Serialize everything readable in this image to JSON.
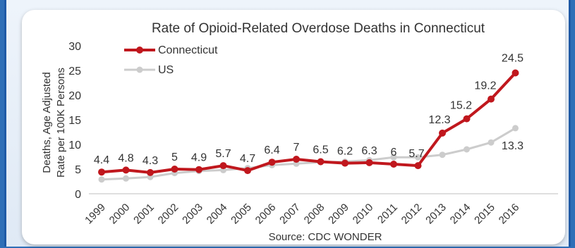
{
  "chart_data": {
    "type": "line",
    "title": "Rate of Opioid-Related Overdose Deaths in Connecticut",
    "ylabel_lines": [
      "Deaths, Age Adjusted",
      "Rate per 100K Persons"
    ],
    "source": "Source: CDC WONDER",
    "categories": [
      "1999",
      "2000",
      "2001",
      "2002",
      "2003",
      "2004",
      "2005",
      "2006",
      "2007",
      "2008",
      "2009",
      "2010",
      "2011",
      "2012",
      "2013",
      "2014",
      "2015",
      "2016"
    ],
    "ylim": [
      0,
      30
    ],
    "yticks": [
      "0",
      "5",
      "10",
      "15",
      "20",
      "25",
      "30"
    ],
    "legend_position": "top-left",
    "grid": false,
    "series": [
      {
        "name": "Connecticut",
        "color": "#c0171d",
        "values": [
          4.4,
          4.8,
          4.3,
          5,
          4.9,
          5.7,
          4.7,
          6.4,
          7,
          6.5,
          6.2,
          6.3,
          6,
          5.7,
          12.3,
          15.2,
          19.2,
          24.5
        ],
        "labels": [
          "4.4",
          "4.8",
          "4.3",
          "5",
          "4.9",
          "5.7",
          "4.7",
          "6.4",
          "7",
          "6.5",
          "6.2",
          "6.3",
          "6",
          "5.7",
          "12.3",
          "15.2",
          "19.2",
          "24.5"
        ]
      },
      {
        "name": "US",
        "color": "#cccccc",
        "values": [
          2.9,
          3.1,
          3.4,
          4.2,
          4.6,
          4.8,
          5.2,
          5.8,
          6.1,
          6.4,
          6.5,
          6.8,
          7.4,
          7.4,
          7.9,
          9.0,
          10.4,
          13.3
        ],
        "labels": [
          "",
          "",
          "",
          "",
          "",
          "",
          "",
          "",
          "",
          "",
          "",
          "",
          "",
          "",
          "",
          "",
          "",
          "13.3"
        ]
      }
    ]
  }
}
